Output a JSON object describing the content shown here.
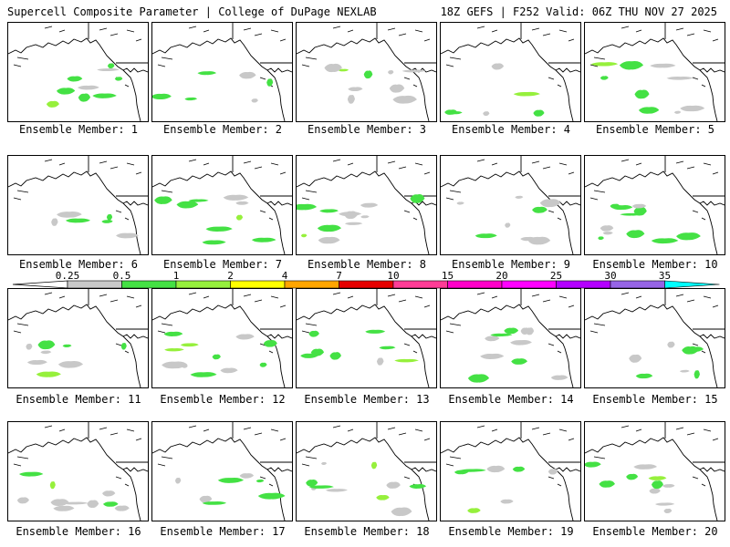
{
  "header": {
    "left": "Supercell Composite Parameter | College of DuPage NEXLAB",
    "right": "18Z GEFS | F252 Valid: 06Z THU NOV 27 2025"
  },
  "label_prefix": "Ensemble Member: ",
  "members": [
    {
      "label": "Ensemble Member: 1"
    },
    {
      "label": "Ensemble Member: 2"
    },
    {
      "label": "Ensemble Member: 3"
    },
    {
      "label": "Ensemble Member: 4"
    },
    {
      "label": "Ensemble Member: 5"
    },
    {
      "label": "Ensemble Member: 6"
    },
    {
      "label": "Ensemble Member: 7"
    },
    {
      "label": "Ensemble Member: 8"
    },
    {
      "label": "Ensemble Member: 9"
    },
    {
      "label": "Ensemble Member: 10"
    },
    {
      "label": "Ensemble Member: 11"
    },
    {
      "label": "Ensemble Member: 12"
    },
    {
      "label": "Ensemble Member: 13"
    },
    {
      "label": "Ensemble Member: 14"
    },
    {
      "label": "Ensemble Member: 15"
    },
    {
      "label": "Ensemble Member: 16"
    },
    {
      "label": "Ensemble Member: 17"
    },
    {
      "label": "Ensemble Member: 18"
    },
    {
      "label": "Ensemble Member: 19"
    },
    {
      "label": "Ensemble Member: 20"
    }
  ],
  "colorbar": {
    "ticks": [
      "0.25",
      "0.5",
      "1",
      "2",
      "4",
      "7",
      "10",
      "15",
      "20",
      "25",
      "30",
      "35"
    ],
    "colors": [
      "#c8c8c8",
      "#44e144",
      "#96f03c",
      "#ffff00",
      "#ffa500",
      "#e60000",
      "#ff3c96",
      "#ff00c8",
      "#ff00ff",
      "#b400ff",
      "#9664e6",
      "#00ffff"
    ]
  }
}
